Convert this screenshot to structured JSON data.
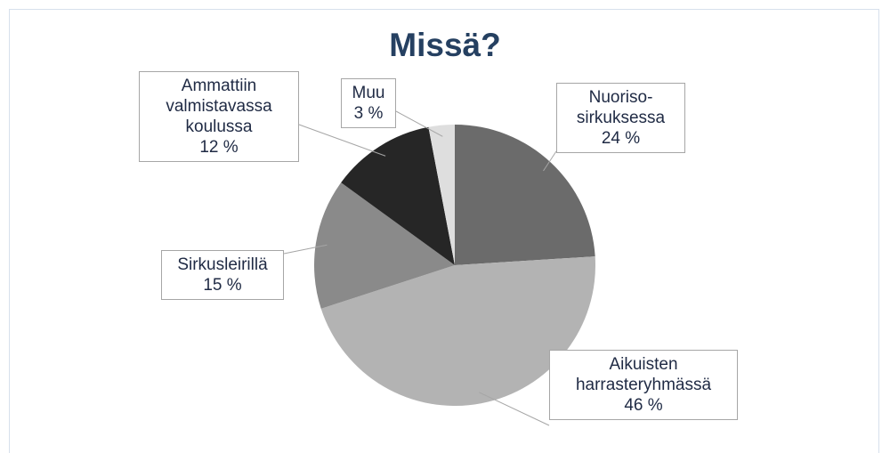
{
  "chart_data": {
    "type": "pie",
    "title": "Missä?",
    "categories": [
      "Nuoriso-sirkuksessa",
      "Aikuisten harrasteryhmässä",
      "Sirkusleirillä",
      "Ammattiin valmistavassa koulussa",
      "Muu"
    ],
    "values": [
      24,
      46,
      15,
      12,
      3
    ],
    "value_labels": [
      "24 %",
      "46 %",
      "15 %",
      "12 %",
      "3 %"
    ],
    "colors": [
      "#6b6b6b",
      "#b3b3b3",
      "#8a8a8a",
      "#262626",
      "#dedede"
    ]
  }
}
